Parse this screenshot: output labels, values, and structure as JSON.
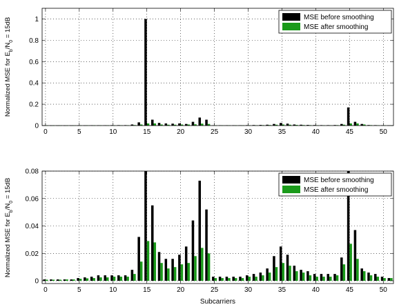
{
  "chart_data": [
    {
      "type": "bar",
      "ylabel_parts": [
        "Normalized MSE  for E",
        "b",
        "/N",
        "0",
        " = 15dB"
      ],
      "xlabel": "",
      "xlim": [
        -0.5,
        51.5
      ],
      "ylim": [
        0,
        1.1
      ],
      "xticks": [
        0,
        5,
        10,
        15,
        20,
        25,
        30,
        35,
        40,
        45,
        50
      ],
      "yticks": [
        0,
        0.2,
        0.4,
        0.6,
        0.8,
        1
      ],
      "ytick_labels": [
        "0",
        "0.2",
        "0.4",
        "0.6",
        "0.8",
        "1"
      ],
      "grid": true,
      "legend": "top-right",
      "x": [
        0,
        1,
        2,
        3,
        4,
        5,
        6,
        7,
        8,
        9,
        10,
        11,
        12,
        13,
        14,
        15,
        16,
        17,
        18,
        19,
        20,
        21,
        22,
        23,
        24,
        25,
        26,
        27,
        28,
        29,
        30,
        31,
        32,
        33,
        34,
        35,
        36,
        37,
        38,
        39,
        40,
        41,
        42,
        43,
        44,
        45,
        46,
        47,
        48,
        49,
        50,
        51
      ],
      "series": [
        {
          "name": "MSE before smoothing",
          "color": "#000000",
          "values": [
            0.001,
            0.001,
            0.001,
            0.001,
            0.001,
            0.002,
            0.002,
            0.003,
            0.003,
            0.003,
            0.004,
            0.004,
            0.004,
            0.01,
            0.03,
            1.0,
            0.055,
            0.025,
            0.02,
            0.018,
            0.02,
            0.015,
            0.035,
            0.075,
            0.055,
            0.003,
            0.003,
            0.003,
            0.003,
            0.003,
            0.004,
            0.005,
            0.006,
            0.008,
            0.015,
            0.024,
            0.018,
            0.01,
            0.008,
            0.006,
            0.005,
            0.004,
            0.004,
            0.005,
            0.015,
            0.17,
            0.035,
            0.015,
            0.005,
            0.004,
            0.003,
            0.002
          ]
        },
        {
          "name": "MSE after smoothing",
          "color": "#1a9a1a",
          "values": [
            0.001,
            0.001,
            0.001,
            0.001,
            0.001,
            0.001,
            0.002,
            0.002,
            0.002,
            0.002,
            0.002,
            0.003,
            0.003,
            0.005,
            0.01,
            0.02,
            0.02,
            0.01,
            0.008,
            0.008,
            0.01,
            0.01,
            0.012,
            0.018,
            0.015,
            0.002,
            0.002,
            0.002,
            0.002,
            0.002,
            0.003,
            0.003,
            0.004,
            0.005,
            0.008,
            0.01,
            0.008,
            0.006,
            0.005,
            0.004,
            0.003,
            0.003,
            0.003,
            0.004,
            0.008,
            0.02,
            0.02,
            0.01,
            0.004,
            0.003,
            0.002,
            0.001
          ]
        }
      ]
    },
    {
      "type": "bar",
      "ylabel_parts": [
        "Normalized MSE for E",
        "b",
        "/N",
        "0",
        " = 15dB"
      ],
      "xlabel": "Subcarriers",
      "xlim": [
        -0.5,
        51.5
      ],
      "ylim": [
        -0.002,
        0.08
      ],
      "xticks": [
        0,
        5,
        10,
        15,
        20,
        25,
        30,
        35,
        40,
        45,
        50
      ],
      "yticks": [
        0,
        0.02,
        0.04,
        0.06,
        0.08
      ],
      "ytick_labels": [
        "0",
        "0.02",
        "0.04",
        "0.06",
        "0.08"
      ],
      "grid": true,
      "legend": "top-right",
      "x": [
        0,
        1,
        2,
        3,
        4,
        5,
        6,
        7,
        8,
        9,
        10,
        11,
        12,
        13,
        14,
        15,
        16,
        17,
        18,
        19,
        20,
        21,
        22,
        23,
        24,
        25,
        26,
        27,
        28,
        29,
        30,
        31,
        32,
        33,
        34,
        35,
        36,
        37,
        38,
        39,
        40,
        41,
        42,
        43,
        44,
        45,
        46,
        47,
        48,
        49,
        50,
        51
      ],
      "series": [
        {
          "name": "MSE before smoothing",
          "color": "#000000",
          "values": [
            0.001,
            0.001,
            0.001,
            0.001,
            0.001,
            0.002,
            0.0025,
            0.003,
            0.004,
            0.004,
            0.004,
            0.004,
            0.004,
            0.008,
            0.032,
            0.085,
            0.055,
            0.021,
            0.016,
            0.016,
            0.019,
            0.025,
            0.044,
            0.073,
            0.052,
            0.003,
            0.003,
            0.003,
            0.003,
            0.003,
            0.004,
            0.005,
            0.006,
            0.009,
            0.018,
            0.025,
            0.019,
            0.011,
            0.008,
            0.007,
            0.005,
            0.005,
            0.005,
            0.005,
            0.017,
            0.085,
            0.037,
            0.009,
            0.006,
            0.005,
            0.003,
            0.002
          ]
        },
        {
          "name": "MSE after smoothing",
          "color": "#1a9a1a",
          "values": [
            0.0008,
            0.0008,
            0.0008,
            0.001,
            0.001,
            0.0015,
            0.0018,
            0.002,
            0.0025,
            0.0025,
            0.003,
            0.003,
            0.003,
            0.005,
            0.014,
            0.029,
            0.028,
            0.013,
            0.009,
            0.01,
            0.012,
            0.013,
            0.018,
            0.024,
            0.02,
            0.002,
            0.002,
            0.002,
            0.002,
            0.002,
            0.003,
            0.003,
            0.004,
            0.006,
            0.01,
            0.013,
            0.011,
            0.007,
            0.006,
            0.004,
            0.003,
            0.003,
            0.003,
            0.004,
            0.012,
            0.027,
            0.016,
            0.007,
            0.004,
            0.003,
            0.002,
            0.002
          ]
        }
      ]
    }
  ]
}
